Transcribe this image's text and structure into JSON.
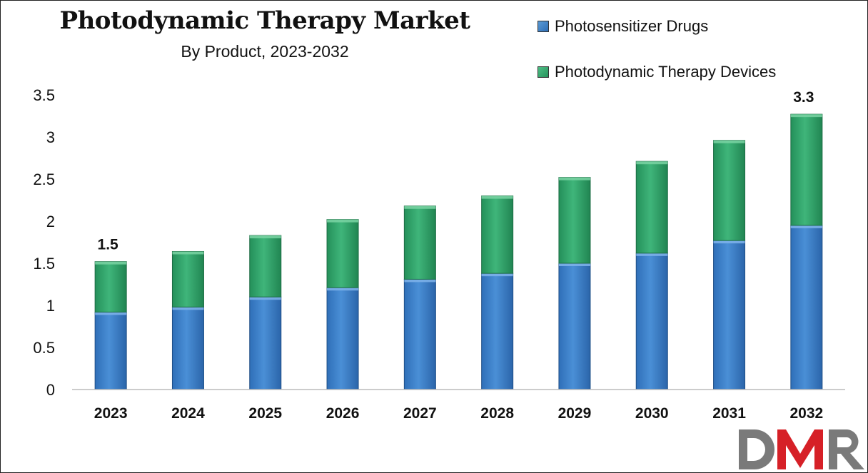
{
  "chart_data": {
    "type": "bar",
    "stacked": true,
    "title": "Photodynamic Therapy Market",
    "subtitle": "By Product, 2023-2032",
    "categories": [
      "2023",
      "2024",
      "2025",
      "2026",
      "2027",
      "2028",
      "2029",
      "2030",
      "2031",
      "2032"
    ],
    "series": [
      {
        "name": "Photosensitizer Drugs",
        "color": "#3a7dc9",
        "values": [
          0.92,
          0.98,
          1.1,
          1.21,
          1.31,
          1.38,
          1.5,
          1.62,
          1.77,
          1.95
        ]
      },
      {
        "name": "Photodynamic Therapy Devices",
        "color": "#2e9e66",
        "values": [
          0.6,
          0.66,
          0.73,
          0.81,
          0.87,
          0.92,
          1.02,
          1.09,
          1.19,
          1.32
        ]
      }
    ],
    "data_labels": [
      {
        "category": "2023",
        "text": "1.5"
      },
      {
        "category": "2032",
        "text": "3.3"
      }
    ],
    "yticks": [
      "0",
      "0.5",
      "1",
      "1.5",
      "2",
      "2.5",
      "3",
      "3.5"
    ],
    "ylim": [
      0,
      3.5
    ],
    "xlabel": "",
    "ylabel": "",
    "grid": false,
    "legend_position": "top-right"
  },
  "logo": {
    "text": "DMR",
    "colors": [
      "#7a7a7a",
      "#d62027"
    ]
  }
}
